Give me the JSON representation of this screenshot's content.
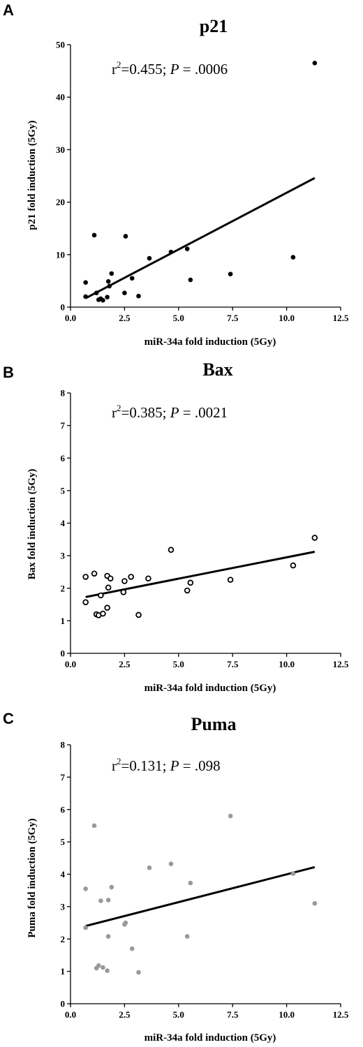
{
  "chart_data": [
    {
      "type": "scatter",
      "panel_label": "A",
      "title": "p21",
      "annotation": {
        "r2_prefix": "r",
        "r2_sup": "2",
        "r2_rest": "=0.455; ",
        "p_label": "P",
        "p_rest": " = .0006"
      },
      "xlabel": "miR-34a fold induction (5Gy)",
      "ylabel": "p21 fold induction (5Gy)",
      "xlim": [
        0,
        12.5
      ],
      "ylim": [
        0,
        50
      ],
      "xticks": [
        "0.0",
        "2.5",
        "5.0",
        "7.5",
        "10.0",
        "12.5"
      ],
      "xtick_values": [
        0,
        2.5,
        5,
        7.5,
        10,
        12.5
      ],
      "yticks": [
        "0",
        "10",
        "20",
        "30",
        "40",
        "50"
      ],
      "ytick_values": [
        0,
        10,
        20,
        30,
        40,
        50
      ],
      "marker": {
        "style": "filled",
        "color": "#000000"
      },
      "points": [
        {
          "x": 0.7,
          "y": 2.0
        },
        {
          "x": 0.7,
          "y": 4.7
        },
        {
          "x": 1.1,
          "y": 13.7
        },
        {
          "x": 1.2,
          "y": 2.7
        },
        {
          "x": 1.3,
          "y": 1.4
        },
        {
          "x": 1.4,
          "y": 1.6
        },
        {
          "x": 1.5,
          "y": 1.3
        },
        {
          "x": 1.7,
          "y": 1.9
        },
        {
          "x": 1.75,
          "y": 4.9
        },
        {
          "x": 1.8,
          "y": 4.0
        },
        {
          "x": 1.9,
          "y": 6.4
        },
        {
          "x": 2.5,
          "y": 2.7
        },
        {
          "x": 2.55,
          "y": 13.5
        },
        {
          "x": 2.85,
          "y": 5.5
        },
        {
          "x": 3.15,
          "y": 2.1
        },
        {
          "x": 3.65,
          "y": 9.3
        },
        {
          "x": 4.65,
          "y": 10.5
        },
        {
          "x": 5.4,
          "y": 11.1
        },
        {
          "x": 5.55,
          "y": 5.2
        },
        {
          "x": 7.4,
          "y": 6.3
        },
        {
          "x": 10.3,
          "y": 9.5
        },
        {
          "x": 11.3,
          "y": 46.5
        }
      ],
      "fit_line": {
        "x": [
          0.7,
          11.3
        ],
        "y": [
          1.7,
          24.6
        ]
      }
    },
    {
      "type": "scatter",
      "panel_label": "B",
      "title": "Bax",
      "annotation": {
        "r2_prefix": "r",
        "r2_sup": "2",
        "r2_rest": "=0.385; ",
        "p_label": "P",
        "p_rest": " =  .0021"
      },
      "xlabel": "miR-34a fold induction (5Gy)",
      "ylabel": "Bax fold induction (5Gy)",
      "xlim": [
        0,
        12.5
      ],
      "ylim": [
        0,
        8
      ],
      "xticks": [
        "0.0",
        "2.5",
        "5.0",
        "7.5",
        "10.0",
        "12.5"
      ],
      "xtick_values": [
        0,
        2.5,
        5,
        7.5,
        10,
        12.5
      ],
      "yticks": [
        "0",
        "1",
        "2",
        "3",
        "4",
        "5",
        "6",
        "7",
        "8"
      ],
      "ytick_values": [
        0,
        1,
        2,
        3,
        4,
        5,
        6,
        7,
        8
      ],
      "marker": {
        "style": "open",
        "color": "#000000"
      },
      "points": [
        {
          "x": 0.7,
          "y": 2.35
        },
        {
          "x": 0.7,
          "y": 1.57
        },
        {
          "x": 1.1,
          "y": 2.45
        },
        {
          "x": 1.2,
          "y": 1.2
        },
        {
          "x": 1.3,
          "y": 1.17
        },
        {
          "x": 1.4,
          "y": 1.78
        },
        {
          "x": 1.5,
          "y": 1.22
        },
        {
          "x": 1.7,
          "y": 1.4
        },
        {
          "x": 1.7,
          "y": 2.38
        },
        {
          "x": 1.75,
          "y": 2.02
        },
        {
          "x": 1.85,
          "y": 2.3
        },
        {
          "x": 2.45,
          "y": 1.88
        },
        {
          "x": 2.5,
          "y": 2.22
        },
        {
          "x": 2.8,
          "y": 2.35
        },
        {
          "x": 3.15,
          "y": 1.18
        },
        {
          "x": 3.6,
          "y": 2.3
        },
        {
          "x": 4.65,
          "y": 3.18
        },
        {
          "x": 5.4,
          "y": 1.93
        },
        {
          "x": 5.55,
          "y": 2.17
        },
        {
          "x": 7.4,
          "y": 2.26
        },
        {
          "x": 10.3,
          "y": 2.7
        },
        {
          "x": 11.3,
          "y": 3.55
        }
      ],
      "fit_line": {
        "x": [
          0.7,
          11.3
        ],
        "y": [
          1.73,
          3.12
        ]
      }
    },
    {
      "type": "scatter",
      "panel_label": "C",
      "title": "Puma",
      "annotation": {
        "r2_prefix": "r",
        "r2_sup": "2",
        "r2_rest": "=0.131; ",
        "p_label": "P",
        "p_rest": " = .098"
      },
      "xlabel": "miR-34a fold induction (5Gy)",
      "ylabel": "Puma fold induction (5Gy)",
      "xlim": [
        0,
        12.5
      ],
      "ylim": [
        0,
        8
      ],
      "xticks": [
        "0.0",
        "2.5",
        "5.0",
        "7.5",
        "10.0",
        "12.5"
      ],
      "xtick_values": [
        0,
        2.5,
        5,
        7.5,
        10,
        12.5
      ],
      "yticks": [
        "0",
        "1",
        "2",
        "3",
        "4",
        "5",
        "6",
        "7",
        "8"
      ],
      "ytick_values": [
        0,
        1,
        2,
        3,
        4,
        5,
        6,
        7,
        8
      ],
      "marker": {
        "style": "filled",
        "color": "#999999"
      },
      "points": [
        {
          "x": 0.7,
          "y": 3.55
        },
        {
          "x": 0.7,
          "y": 2.35
        },
        {
          "x": 1.1,
          "y": 5.5
        },
        {
          "x": 1.2,
          "y": 1.1
        },
        {
          "x": 1.3,
          "y": 1.18
        },
        {
          "x": 1.4,
          "y": 3.18
        },
        {
          "x": 1.5,
          "y": 1.12
        },
        {
          "x": 1.7,
          "y": 1.02
        },
        {
          "x": 1.75,
          "y": 3.2
        },
        {
          "x": 1.75,
          "y": 2.08
        },
        {
          "x": 1.9,
          "y": 3.6
        },
        {
          "x": 2.5,
          "y": 2.45
        },
        {
          "x": 2.55,
          "y": 2.5
        },
        {
          "x": 2.85,
          "y": 1.7
        },
        {
          "x": 3.15,
          "y": 0.97
        },
        {
          "x": 3.65,
          "y": 4.2
        },
        {
          "x": 4.65,
          "y": 4.32
        },
        {
          "x": 5.4,
          "y": 2.08
        },
        {
          "x": 5.55,
          "y": 3.73
        },
        {
          "x": 7.4,
          "y": 5.8
        },
        {
          "x": 10.3,
          "y": 4.02
        },
        {
          "x": 11.3,
          "y": 3.1
        }
      ],
      "fit_line": {
        "x": [
          0.7,
          11.3
        ],
        "y": [
          2.4,
          4.22
        ]
      }
    }
  ]
}
